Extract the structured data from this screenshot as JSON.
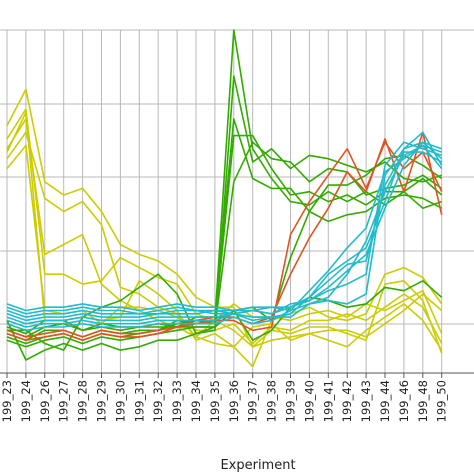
{
  "chart_data": {
    "type": "line",
    "xlabel": "Experiment",
    "ylabel": "",
    "ylim": [
      0,
      10
    ],
    "grid": true,
    "legend": "none",
    "categories": [
      "199_23",
      "199_24",
      "199_26",
      "199_27",
      "199_28",
      "199_29",
      "199_30",
      "199_31",
      "199_32",
      "199_33",
      "199_34",
      "199_35",
      "199_36",
      "199_37",
      "199_38",
      "199_39",
      "199_40",
      "199_41",
      "199_42",
      "199_43",
      "199_44",
      "199_46",
      "199_48",
      "199_50"
    ],
    "series": [
      {
        "color": "#cccc00",
        "values": [
          7.1,
          8.2,
          5.4,
          5.0,
          5.2,
          4.5,
          3.5,
          3.2,
          3.0,
          2.6,
          1.9,
          1.6,
          1.6,
          0.4,
          0.6,
          0.7,
          0.8,
          0.9,
          0.9,
          0.7,
          1.1,
          1.5,
          2.0,
          1.5
        ]
      },
      {
        "color": "#cccc00",
        "values": [
          6.4,
          7.3,
          3.2,
          3.5,
          3.8,
          2.3,
          1.8,
          1.5,
          1.2,
          1.0,
          0.7,
          0.5,
          0.4,
          1.0,
          1.1,
          0.6,
          0.8,
          0.6,
          0.4,
          0.9,
          1.3,
          1.7,
          1.2,
          0.3
        ]
      },
      {
        "color": "#cccc00",
        "values": [
          5.8,
          6.5,
          1.5,
          1.4,
          1.5,
          1.1,
          1.6,
          1.6,
          1.5,
          1.3,
          0.9,
          0.9,
          1.1,
          0.5,
          1.0,
          0.9,
          1.2,
          1.2,
          1.4,
          1.2,
          1.6,
          2.0,
          1.6,
          0.5
        ]
      },
      {
        "color": "#cccc00",
        "values": [
          6.1,
          6.9,
          4.9,
          4.5,
          4.8,
          4.1,
          2.2,
          2.0,
          1.6,
          1.4,
          0.7,
          1.2,
          0.9,
          0.4,
          0.9,
          0.8,
          1.0,
          1.0,
          0.8,
          0.6,
          2.3,
          2.4,
          1.8,
          0.2
        ]
      },
      {
        "color": "#cccc00",
        "values": [
          6.7,
          7.6,
          2.6,
          2.6,
          2.3,
          2.4,
          3.1,
          2.8,
          2.5,
          2.3,
          1.4,
          1.2,
          1.7,
          1.3,
          1.3,
          1.2,
          1.4,
          1.5,
          1.3,
          1.7,
          1.5,
          1.8,
          2.1,
          0.8
        ]
      },
      {
        "color": "#cccc00",
        "values": [
          6.3,
          7.5,
          1.2,
          1.2,
          1.3,
          1.2,
          1.3,
          2.4,
          2.0,
          1.5,
          0.6,
          0.8,
          0.4,
          -0.2,
          1.2,
          1.4,
          1.6,
          1.3,
          1.2,
          1.4,
          2.6,
          2.8,
          2.5,
          1.7
        ]
      },
      {
        "color": "#33aa00",
        "values": [
          0.9,
          0.7,
          1.0,
          1.1,
          0.9,
          1.0,
          0.9,
          1.0,
          1.0,
          1.0,
          1.0,
          1.0,
          1.5,
          1.6,
          1.2,
          3.1,
          4.5,
          5.3,
          5.3,
          5.6,
          6.1,
          6.2,
          5.9,
          5.5
        ]
      },
      {
        "color": "#33aa00",
        "values": [
          0.7,
          0.5,
          0.7,
          0.8,
          0.6,
          0.8,
          0.7,
          0.8,
          0.9,
          1.2,
          1.1,
          1.2,
          10.0,
          6.4,
          5.5,
          4.8,
          4.7,
          5.1,
          4.8,
          5.1,
          4.7,
          5.1,
          5.5,
          5.0
        ]
      },
      {
        "color": "#33aa00",
        "values": [
          1.0,
          0.8,
          1.2,
          1.2,
          0.9,
          1.1,
          1.0,
          1.0,
          1.1,
          1.0,
          1.3,
          1.3,
          7.3,
          5.5,
          5.2,
          5.2,
          4.5,
          4.2,
          4.4,
          4.5,
          4.9,
          5.0,
          4.9,
          4.6
        ]
      },
      {
        "color": "#33aa00",
        "values": [
          0.8,
          0.6,
          0.9,
          0.9,
          0.7,
          0.9,
          0.8,
          0.9,
          0.9,
          1.1,
          1.2,
          1.1,
          6.8,
          6.8,
          5.8,
          5.0,
          5.1,
          4.8,
          5.0,
          4.7,
          5.1,
          5.1,
          4.6,
          4.8
        ]
      },
      {
        "color": "#33aa00",
        "values": [
          0.6,
          0.4,
          0.6,
          0.7,
          0.5,
          0.7,
          0.6,
          0.7,
          0.8,
          0.9,
          1.0,
          1.0,
          5.4,
          6.6,
          6.1,
          6.0,
          5.4,
          5.8,
          5.7,
          5.0,
          5.2,
          5.3,
          5.6,
          5.2
        ]
      },
      {
        "color": "#33aa00",
        "values": [
          1.2,
          0.0,
          0.3,
          0.5,
          0.3,
          0.5,
          0.3,
          0.4,
          0.6,
          0.6,
          0.8,
          0.9,
          8.6,
          6.0,
          6.4,
          5.8,
          6.2,
          6.1,
          5.9,
          5.7,
          6.0,
          5.5,
          5.4,
          5.6
        ]
      },
      {
        "color": "#33aa00",
        "values": [
          0.9,
          0.9,
          0.5,
          0.3,
          1.3,
          1.6,
          1.8,
          2.2,
          2.6,
          2.0,
          0.8,
          1.0,
          1.5,
          0.6,
          0.9,
          1.6,
          1.9,
          1.8,
          1.6,
          1.7,
          2.2,
          2.1,
          2.4,
          1.9
        ]
      },
      {
        "color": "#dd5522",
        "values": [
          0.8,
          0.6,
          0.7,
          0.8,
          0.6,
          0.8,
          0.7,
          0.7,
          0.8,
          1.0,
          1.1,
          1.2,
          1.2,
          0.9,
          1.0,
          3.8,
          4.8,
          5.6,
          6.4,
          5.2,
          6.6,
          5.8,
          6.3,
          5.1
        ]
      },
      {
        "color": "#dd5522",
        "values": [
          0.9,
          0.7,
          0.8,
          0.9,
          0.7,
          0.9,
          0.8,
          0.8,
          0.9,
          1.0,
          1.2,
          1.3,
          1.3,
          1.1,
          1.3,
          2.6,
          3.7,
          4.6,
          5.7,
          5.1,
          6.7,
          5.1,
          6.9,
          4.4
        ]
      },
      {
        "color": "#22bbcc",
        "values": [
          1.6,
          1.4,
          1.5,
          1.5,
          1.6,
          1.5,
          1.5,
          1.4,
          1.5,
          1.6,
          1.5,
          1.4,
          1.4,
          1.5,
          1.6,
          1.5,
          1.7,
          1.8,
          1.7,
          2.0,
          5.6,
          6.4,
          6.6,
          6.1
        ]
      },
      {
        "color": "#22bbcc",
        "values": [
          1.4,
          1.2,
          1.3,
          1.3,
          1.4,
          1.3,
          1.3,
          1.3,
          1.4,
          1.4,
          1.4,
          1.5,
          1.5,
          1.5,
          1.4,
          1.6,
          1.8,
          2.1,
          2.3,
          2.6,
          5.9,
          6.6,
          6.4,
          6.2
        ]
      },
      {
        "color": "#22bbcc",
        "values": [
          1.3,
          1.1,
          1.2,
          1.2,
          1.3,
          1.2,
          1.2,
          1.2,
          1.3,
          1.3,
          1.3,
          1.3,
          1.4,
          1.3,
          1.3,
          1.4,
          1.9,
          2.6,
          3.0,
          3.4,
          4.8,
          6.4,
          6.9,
          5.9
        ]
      },
      {
        "color": "#22bbcc",
        "values": [
          1.5,
          1.3,
          1.4,
          1.4,
          1.5,
          1.4,
          1.4,
          1.4,
          1.4,
          1.5,
          1.5,
          1.5,
          1.4,
          1.5,
          1.4,
          1.7,
          1.8,
          2.2,
          2.7,
          3.2,
          4.6,
          5.9,
          6.6,
          6.4
        ]
      },
      {
        "color": "#22bbcc",
        "values": [
          1.2,
          1.0,
          1.1,
          1.1,
          1.2,
          1.1,
          1.1,
          1.1,
          1.2,
          1.2,
          1.2,
          1.2,
          1.4,
          1.2,
          1.3,
          1.3,
          1.7,
          1.9,
          2.6,
          3.6,
          5.1,
          6.2,
          6.5,
          5.8
        ]
      },
      {
        "color": "#22bbcc",
        "values": [
          1.7,
          1.5,
          1.6,
          1.6,
          1.7,
          1.6,
          1.6,
          1.5,
          1.6,
          1.7,
          1.6,
          1.6,
          1.5,
          1.6,
          1.6,
          1.6,
          1.9,
          2.4,
          2.9,
          3.0,
          5.3,
          6.3,
          6.3,
          6.0
        ]
      },
      {
        "color": "#22bbcc",
        "values": [
          1.1,
          0.9,
          1.0,
          1.0,
          1.1,
          1.0,
          1.0,
          1.0,
          1.1,
          1.1,
          1.1,
          1.1,
          1.3,
          1.1,
          1.2,
          1.5,
          2.1,
          2.7,
          3.4,
          4.0,
          5.7,
          6.1,
          6.5,
          6.3
        ]
      }
    ]
  }
}
